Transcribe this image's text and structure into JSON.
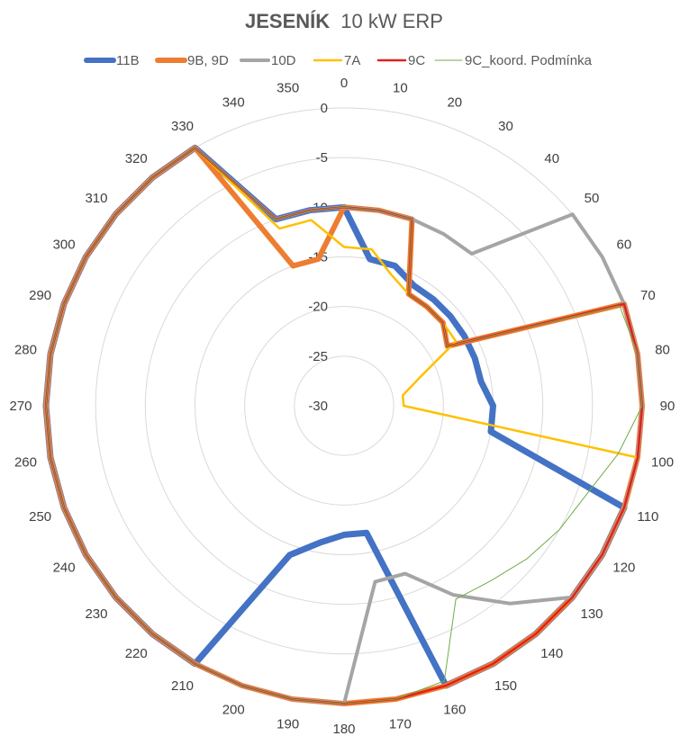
{
  "chart_data": {
    "type": "radar",
    "title_bold": "JESENÍK",
    "title_rest": "10 kW ERP",
    "angles": [
      0,
      10,
      20,
      30,
      40,
      50,
      60,
      70,
      80,
      90,
      100,
      110,
      120,
      130,
      140,
      150,
      160,
      170,
      180,
      190,
      200,
      210,
      220,
      230,
      240,
      250,
      260,
      270,
      280,
      290,
      300,
      310,
      320,
      330,
      340,
      350
    ],
    "angle_labels": [
      "0",
      "10",
      "20",
      "30",
      "40",
      "50",
      "60",
      "70",
      "80",
      "90",
      "100",
      "110",
      "120",
      "130",
      "140",
      "150",
      "160",
      "170",
      "180",
      "190",
      "200",
      "210",
      "220",
      "230",
      "240",
      "250",
      "260",
      "270",
      "280",
      "290",
      "300",
      "310",
      "320",
      "330",
      "340",
      "350"
    ],
    "r_ticks": [
      0,
      -5,
      -10,
      -15,
      -20,
      -25,
      -30
    ],
    "r_tick_labels": [
      "0",
      "-5",
      "-10",
      "-15",
      "-20",
      "-25",
      "-30"
    ],
    "rlim": [
      -30,
      0
    ],
    "legend_position": "top",
    "series": [
      {
        "name": "11B",
        "color": "#4472C4",
        "width": 7,
        "values": [
          -10,
          -15,
          -15,
          -16,
          -16,
          -16,
          -16,
          -16,
          -16,
          -15,
          -15,
          0,
          0,
          0,
          0,
          0,
          0,
          -17,
          -17,
          -16,
          -14,
          0,
          0,
          0,
          0,
          0,
          0,
          0,
          0,
          0,
          0,
          0,
          0,
          0,
          -10,
          -10
        ]
      },
      {
        "name": "9B, 9D",
        "color": "#ED7D31",
        "width": 6,
        "values": [
          -10,
          -10,
          -10,
          -17,
          -17,
          -17,
          -18,
          0,
          0,
          0,
          0,
          0,
          0,
          0,
          0,
          0,
          0,
          0,
          0,
          0,
          0,
          0,
          0,
          0,
          0,
          0,
          0,
          0,
          0,
          0,
          0,
          0,
          0,
          0,
          -15,
          -15
        ]
      },
      {
        "name": "10D",
        "color": "#A5A5A5",
        "width": 4,
        "values": [
          -10,
          -10,
          -10,
          -10,
          -10,
          0,
          0,
          0,
          0,
          0,
          0,
          0,
          0,
          0,
          -4,
          -8,
          -12,
          -12,
          0,
          0,
          0,
          0,
          0,
          0,
          0,
          0,
          0,
          0,
          0,
          0,
          0,
          0,
          0,
          0,
          -10,
          -10
        ]
      },
      {
        "name": "7A",
        "color": "#FFC000",
        "width": 2.5,
        "values": [
          -14,
          -14,
          -16,
          -17,
          -17,
          -17,
          -17,
          -22,
          -24,
          -24,
          0,
          0,
          0,
          0,
          0,
          0,
          0,
          0,
          0,
          0,
          0,
          0,
          0,
          0,
          0,
          0,
          0,
          0,
          0,
          0,
          0,
          0,
          0,
          0,
          -11,
          -11
        ]
      },
      {
        "name": "9C",
        "color": "#E02020",
        "width": 2.5,
        "values": [
          -10,
          -10,
          -10,
          -17,
          -17,
          -17,
          -18,
          0,
          0,
          0,
          0,
          0,
          0,
          0,
          0,
          0,
          0,
          0,
          0,
          0,
          0,
          0,
          0,
          0,
          0,
          0,
          0,
          0,
          0,
          0,
          0,
          0,
          0,
          0,
          -10,
          -10
        ]
      },
      {
        "name": "9C_koord. Podmínka",
        "color": "#70AD47",
        "width": 1,
        "values": [
          -10,
          -10,
          -10,
          -17,
          -17,
          -17,
          -18,
          -0.5,
          0,
          0,
          -2,
          -4,
          -5,
          -6,
          -7,
          -7.5,
          -0.5,
          0,
          0,
          0,
          0,
          0,
          0,
          0,
          0,
          0,
          0,
          0,
          0,
          0,
          0,
          0,
          0,
          0,
          -10,
          -10
        ]
      }
    ]
  }
}
